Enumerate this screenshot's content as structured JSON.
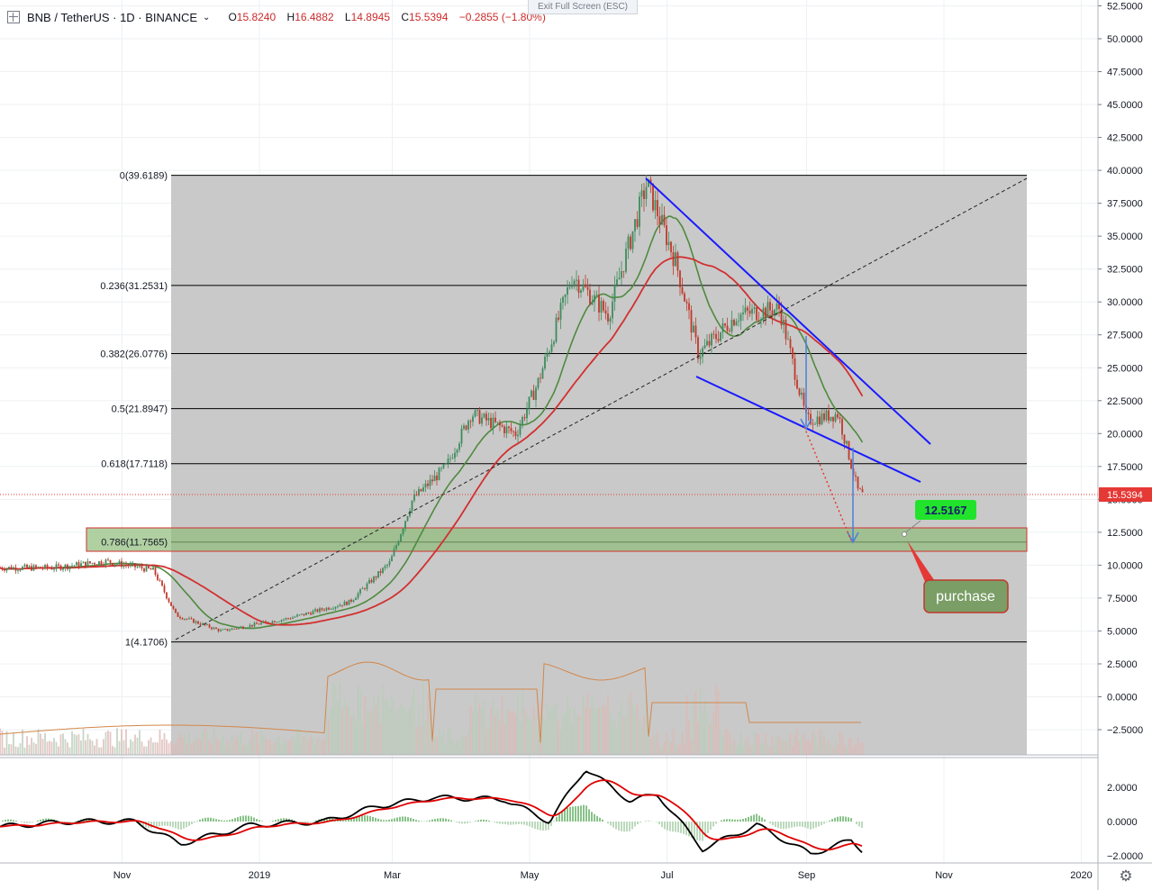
{
  "header": {
    "symbol": "BNB / TetherUS · 1D · BINANCE",
    "chevron": "⌄",
    "open_label": "O",
    "open": "15.8240",
    "high_label": "H",
    "high": "16.4882",
    "low_label": "L",
    "low": "14.8945",
    "close_label": "C",
    "close": "15.5394",
    "change": "−0.2855 (−1.80%)"
  },
  "exit_fullscreen": "Exit Full Screen (ESC)",
  "colors": {
    "up": "#3d8b5c",
    "down": "#c0392b",
    "ma_fast": "#4e8a3e",
    "ma_slow": "#d32f2f",
    "trendline": "#1a1aff",
    "fib_shade": "#c9c9c9",
    "zone": "#8fbc7a",
    "zone_border": "#d32f2f",
    "label_green": "#22e32b",
    "label_olive": "#7a9e66",
    "price_tag": "#e53935",
    "macd": "#000000",
    "signal": "#e00000",
    "hist": "#4a9a4a",
    "volume_ma": "#d2874a"
  },
  "price_axis": {
    "ticks": [
      "52.5000",
      "50.0000",
      "47.5000",
      "45.0000",
      "42.5000",
      "40.0000",
      "37.5000",
      "35.0000",
      "32.5000",
      "30.0000",
      "27.5000",
      "25.0000",
      "22.5000",
      "20.0000",
      "17.5000",
      "15.0000",
      "12.5000",
      "10.0000",
      "7.5000",
      "5.0000",
      "2.5000",
      "0.0000",
      "−2.5000"
    ],
    "current_price": "15.5394"
  },
  "macd_axis": {
    "ticks": [
      "2.0000",
      "0.0000",
      "−2.0000"
    ]
  },
  "time_axis": {
    "labels": [
      "Nov",
      "2019",
      "Mar",
      "May",
      "Jul",
      "Sep",
      "Nov",
      "2020"
    ]
  },
  "fib_levels": [
    {
      "label": "0(39.6189)",
      "value": 39.6189
    },
    {
      "label": "0.236(31.2531)",
      "value": 31.2531
    },
    {
      "label": "0.382(26.0776)",
      "value": 26.0776
    },
    {
      "label": "0.5(21.8947)",
      "value": 21.8947
    },
    {
      "label": "0.618(17.7118)",
      "value": 17.7118
    },
    {
      "label": "0.786(11.7565)",
      "value": 11.7565
    },
    {
      "label": "1(4.1706)",
      "value": 4.1706
    }
  ],
  "annotations": {
    "target_label": "12.5167",
    "purchase_label": "purchase"
  },
  "chart_data": {
    "type": "line",
    "title": "",
    "series": [
      {
        "name": "",
        "x": [
          "2018-10-01",
          "2018-10-25",
          "2018-11-15",
          "2018-11-25",
          "2018-12-15",
          "2019-01-15",
          "2019-02-10",
          "2019-02-28",
          "2019-03-10",
          "2019-03-25",
          "2019-04-05",
          "2019-04-25",
          "2019-05-05",
          "2019-05-20",
          "2019-06-05",
          "2019-06-22",
          "2019-07-05",
          "2019-07-15",
          "2019-08-01",
          "2019-08-20",
          "2019-09-01",
          "2019-09-15",
          "2019-09-24"
        ],
        "values": [
          9.8,
          10.3,
          9.6,
          6.2,
          5.0,
          6.0,
          7.2,
          10.2,
          15.0,
          17.5,
          21.5,
          20.0,
          24.0,
          32.0,
          29.0,
          39.0,
          33.0,
          26.0,
          29.0,
          29.5,
          21.0,
          21.5,
          15.54
        ]
      }
    ],
    "ylim": [
      -5,
      53
    ]
  }
}
